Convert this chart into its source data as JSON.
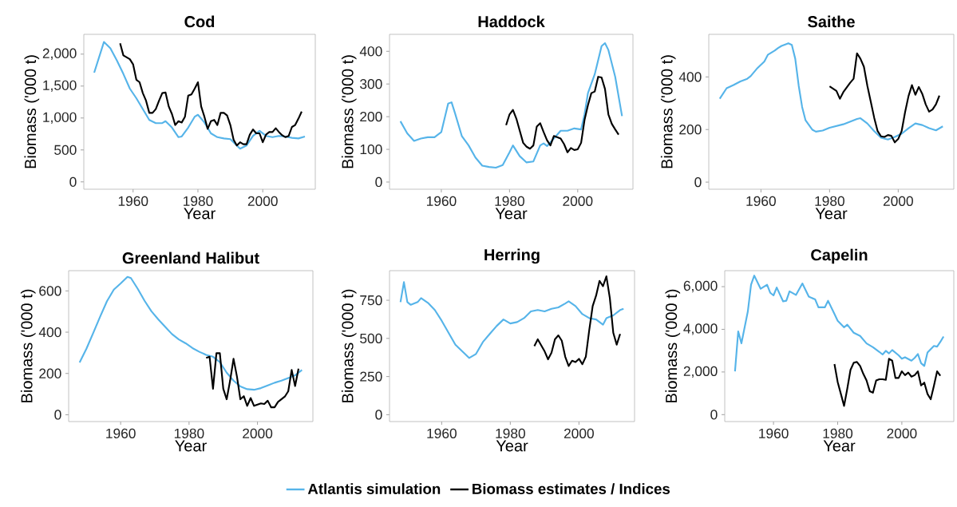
{
  "chart_data": [
    {
      "type": "line",
      "title": "Cod",
      "xlabel": "Year",
      "ylabel": "Biomass ('000 t)",
      "xlim": [
        1944.8,
        2016.2
      ],
      "ylim": [
        -115,
        2310
      ],
      "xticks": [
        1960,
        1980,
        2000
      ],
      "yticks": [
        0,
        500,
        {
          "value": 1000,
          "label": "1,000"
        },
        {
          "value": 1500,
          "label": "1,500"
        },
        {
          "value": 2000,
          "label": "2,000"
        }
      ],
      "legend": "bottom",
      "series": [
        {
          "name": "Atlantis simulation",
          "color": "#56b4e9",
          "x": [
            1948,
            1951,
            1953,
            1955,
            1957,
            1959,
            1961,
            1963,
            1965,
            1967,
            1969,
            1970,
            1972,
            1974,
            1975,
            1977,
            1979,
            1980,
            1982,
            1984,
            1986,
            1988,
            1990,
            1992,
            1993,
            1995,
            1997,
            1999,
            2001,
            2003,
            2005,
            2007,
            2009,
            2011,
            2013
          ],
          "values": [
            1710,
            2190,
            2090,
            1900,
            1690,
            1460,
            1310,
            1140,
            970,
            920,
            920,
            950,
            850,
            700,
            710,
            850,
            1020,
            1050,
            930,
            760,
            700,
            680,
            670,
            570,
            520,
            570,
            720,
            800,
            720,
            700,
            720,
            710,
            690,
            680,
            710
          ]
        },
        {
          "name": "Biomass estimates / Indices",
          "color": "#000000",
          "x": [
            1956,
            1957,
            1959,
            1960,
            1961,
            1962,
            1963,
            1964,
            1965,
            1966,
            1967,
            1968,
            1969,
            1970,
            1971,
            1972,
            1973,
            1974,
            1975,
            1976,
            1977,
            1978,
            1979,
            1980,
            1981,
            1982,
            1983,
            1984,
            1985,
            1986,
            1987,
            1988,
            1989,
            1990,
            1991,
            1992,
            1993,
            1994,
            1995,
            1996,
            1997,
            1998,
            1999,
            2000,
            2001,
            2002,
            2003,
            2004,
            2005,
            2006,
            2007,
            2008,
            2009,
            2010,
            2011,
            2012
          ],
          "values": [
            2170,
            1980,
            1920,
            1840,
            1600,
            1560,
            1390,
            1270,
            1080,
            1080,
            1140,
            1270,
            1390,
            1400,
            1180,
            1060,
            890,
            950,
            930,
            1020,
            1350,
            1370,
            1460,
            1560,
            1180,
            1020,
            830,
            950,
            970,
            890,
            1080,
            1080,
            1040,
            890,
            660,
            570,
            620,
            590,
            590,
            740,
            820,
            760,
            760,
            620,
            740,
            780,
            780,
            840,
            780,
            730,
            700,
            720,
            860,
            890,
            990,
            1100
          ]
        }
      ]
    },
    {
      "type": "line",
      "title": "Haddock",
      "xlabel": "Year",
      "ylabel": "Biomass ('000 t)",
      "xlim": [
        1944.8,
        2016.2
      ],
      "ylim": [
        -22,
        452
      ],
      "xticks": [
        1960,
        1980,
        2000
      ],
      "yticks": [
        0,
        100,
        200,
        300,
        400
      ],
      "series": [
        {
          "color": "#56b4e9",
          "x": [
            1948,
            1950,
            1952,
            1954,
            1956,
            1958,
            1960,
            1962,
            1963,
            1964,
            1966,
            1968,
            1970,
            1972,
            1974,
            1976,
            1978,
            1980,
            1981,
            1983,
            1985,
            1987,
            1989,
            1990,
            1991,
            1993,
            1995,
            1997,
            1999,
            2001,
            2002,
            2003,
            2005,
            2007,
            2008,
            2009,
            2011,
            2013
          ],
          "values": [
            186,
            149,
            126,
            133,
            137,
            137,
            153,
            240,
            244,
            211,
            141,
            112,
            75,
            50,
            46,
            44,
            52,
            91,
            112,
            79,
            60,
            63,
            112,
            118,
            110,
            133,
            157,
            157,
            164,
            161,
            207,
            272,
            330,
            416,
            425,
            404,
            322,
            202
          ]
        },
        {
          "color": "#000000",
          "x": [
            1979,
            1980,
            1981,
            1982,
            1983,
            1984,
            1985,
            1986,
            1987,
            1988,
            1989,
            1990,
            1991,
            1992,
            1993,
            1994,
            1995,
            1996,
            1997,
            1998,
            1999,
            2000,
            2001,
            2002,
            2003,
            2004,
            2005,
            2006,
            2007,
            2008,
            2009,
            2010,
            2011,
            2012
          ],
          "values": [
            174,
            207,
            221,
            194,
            157,
            120,
            108,
            102,
            112,
            170,
            180,
            153,
            128,
            112,
            141,
            137,
            133,
            116,
            91,
            104,
            98,
            100,
            120,
            190,
            235,
            272,
            277,
            322,
            320,
            285,
            207,
            178,
            161,
            145
          ]
        }
      ]
    },
    {
      "type": "line",
      "title": "Saithe",
      "xlabel": "Year",
      "ylabel": "Biomass ('000 t)",
      "xlim": [
        1944.8,
        2016.2
      ],
      "ylim": [
        -27,
        562
      ],
      "xticks": [
        1960,
        1980,
        2000
      ],
      "yticks": [
        0,
        200,
        400
      ],
      "series": [
        {
          "color": "#56b4e9",
          "x": [
            1948,
            1950,
            1952,
            1954,
            1956,
            1957,
            1959,
            1961,
            1962,
            1964,
            1965,
            1966,
            1968,
            1969,
            1970,
            1971,
            1972,
            1973,
            1975,
            1976,
            1978,
            1980,
            1984,
            1988,
            1989,
            1991,
            1993,
            1995,
            1997,
            1999,
            2001,
            2003,
            2005,
            2007,
            2009,
            2011,
            2013
          ],
          "values": [
            317,
            357,
            369,
            383,
            393,
            403,
            434,
            459,
            484,
            500,
            510,
            518,
            528,
            522,
            469,
            367,
            286,
            235,
            199,
            192,
            196,
            207,
            220,
            240,
            243,
            223,
            194,
            169,
            162,
            172,
            184,
            205,
            223,
            217,
            205,
            197,
            212
          ]
        },
        {
          "color": "#000000",
          "x": [
            1980,
            1982,
            1983,
            1984,
            1986,
            1987,
            1988,
            1989,
            1990,
            1991,
            1992,
            1993,
            1994,
            1995,
            1996,
            1997,
            1998,
            1999,
            2000,
            2001,
            2002,
            2003,
            2004,
            2005,
            2006,
            2007,
            2008,
            2009,
            2010,
            2011,
            2012
          ],
          "values": [
            364,
            347,
            317,
            342,
            378,
            393,
            490,
            469,
            439,
            367,
            306,
            245,
            194,
            174,
            172,
            179,
            176,
            151,
            164,
            194,
            266,
            327,
            369,
            332,
            362,
            336,
            296,
            268,
            276,
            296,
            329
          ]
        }
      ]
    },
    {
      "type": "line",
      "title": "Greenland Halibut",
      "xlabel": "Year",
      "ylabel": "Biomass ('000 t)",
      "xlim": [
        1944.8,
        2016.2
      ],
      "ylim": [
        -33,
        698
      ],
      "xticks": [
        1960,
        1980,
        2000
      ],
      "yticks": [
        0,
        200,
        400,
        600
      ],
      "series": [
        {
          "color": "#56b4e9",
          "x": [
            1948,
            1950,
            1952,
            1954,
            1956,
            1958,
            1960,
            1962,
            1963,
            1965,
            1967,
            1969,
            1971,
            1973,
            1975,
            1977,
            1979,
            1981,
            1983,
            1985,
            1987,
            1989,
            1991,
            1993,
            1995,
            1997,
            1999,
            2001,
            2003,
            2005,
            2007,
            2009,
            2011,
            2013
          ],
          "values": [
            253,
            320,
            397,
            475,
            550,
            606,
            636,
            668,
            662,
            610,
            552,
            501,
            462,
            426,
            391,
            365,
            346,
            323,
            305,
            290,
            281,
            255,
            204,
            165,
            137,
            124,
            121,
            129,
            142,
            155,
            165,
            178,
            191,
            217
          ]
        },
        {
          "color": "#000000",
          "x": [
            1985,
            1986,
            1987,
            1988,
            1989,
            1990,
            1991,
            1992,
            1993,
            1994,
            1995,
            1996,
            1997,
            1998,
            1999,
            2000,
            2001,
            2002,
            2003,
            2004,
            2005,
            2006,
            2007,
            2008,
            2009,
            2010,
            2011,
            2012
          ],
          "values": [
            275,
            281,
            126,
            298,
            298,
            126,
            75,
            165,
            271,
            185,
            75,
            90,
            43,
            81,
            43,
            49,
            55,
            52,
            68,
            36,
            36,
            62,
            75,
            88,
            114,
            217,
            139,
            223
          ]
        }
      ]
    },
    {
      "type": "line",
      "title": "Herring",
      "xlabel": "Year",
      "ylabel": "Biomass ('000 t)",
      "xlim": [
        1944.8,
        2016.2
      ],
      "ylim": [
        -45,
        944
      ],
      "xticks": [
        1960,
        1980,
        2000
      ],
      "yticks": [
        0,
        250,
        500,
        750
      ],
      "series": [
        {
          "color": "#56b4e9",
          "x": [
            1948,
            1949,
            1950,
            1951,
            1953,
            1954,
            1956,
            1958,
            1960,
            1962,
            1964,
            1966,
            1968,
            1970,
            1972,
            1974,
            1976,
            1978,
            1980,
            1982,
            1984,
            1986,
            1988,
            1990,
            1992,
            1994,
            1996,
            1997,
            1999,
            2001,
            2003,
            2005,
            2007,
            2008,
            2010,
            2012,
            2013
          ],
          "values": [
            738,
            869,
            738,
            720,
            738,
            764,
            733,
            686,
            616,
            537,
            459,
            415,
            372,
            398,
            476,
            529,
            581,
            624,
            598,
            607,
            633,
            677,
            686,
            677,
            694,
            703,
            729,
            743,
            712,
            659,
            633,
            624,
            590,
            633,
            651,
            686,
            694
          ]
        },
        {
          "color": "#000000",
          "x": [
            1987,
            1988,
            1990,
            1991,
            1992,
            1993,
            1994,
            1995,
            1996,
            1997,
            1998,
            1999,
            2000,
            2001,
            2002,
            2003,
            2004,
            2005,
            2006,
            2007,
            2008,
            2009,
            2010,
            2011,
            2012
          ],
          "values": [
            450,
            494,
            415,
            363,
            406,
            494,
            520,
            485,
            380,
            319,
            354,
            345,
            366,
            331,
            380,
            555,
            712,
            781,
            877,
            842,
            907,
            764,
            537,
            459,
            529
          ]
        }
      ]
    },
    {
      "type": "line",
      "title": "Capelin",
      "xlabel": "Year",
      "ylabel": "Biomass ('000 t)",
      "xlim": [
        1944.8,
        2016.2
      ],
      "ylim": [
        -325,
        6750
      ],
      "xticks": [
        1960,
        1980,
        2000
      ],
      "yticks": [
        0,
        {
          "value": 2000,
          "label": "2,000"
        },
        {
          "value": 4000,
          "label": "4,000"
        },
        {
          "value": 6000,
          "label": "6,000"
        }
      ],
      "series": [
        {
          "color": "#56b4e9",
          "x": [
            1948,
            1949,
            1950,
            1951,
            1952,
            1953,
            1954,
            1955,
            1956,
            1958,
            1959,
            1960,
            1961,
            1963,
            1964,
            1965,
            1967,
            1969,
            1971,
            1973,
            1974,
            1976,
            1977,
            1979,
            1980,
            1982,
            1983,
            1985,
            1987,
            1989,
            1991,
            1993,
            1994,
            1995,
            1996,
            1997,
            1999,
            2000,
            2001,
            2003,
            2004,
            2005,
            2006,
            2007,
            2008,
            2010,
            2011,
            2012,
            2013
          ],
          "values": [
            2030,
            3900,
            3340,
            4090,
            4840,
            6090,
            6520,
            6210,
            5900,
            6090,
            5710,
            5590,
            5960,
            5310,
            5340,
            5780,
            5610,
            6150,
            5530,
            5400,
            5030,
            5030,
            5340,
            4720,
            4400,
            4090,
            4220,
            3840,
            3690,
            3340,
            3160,
            2940,
            2820,
            2990,
            2870,
            3030,
            2780,
            2620,
            2690,
            2530,
            2660,
            2840,
            2410,
            2280,
            2910,
            3220,
            3190,
            3410,
            3660
          ]
        },
        {
          "color": "#000000",
          "x": [
            1979,
            1980,
            1981,
            1982,
            1983,
            1984,
            1985,
            1986,
            1987,
            1988,
            1989,
            1990,
            1991,
            1992,
            1993,
            1994,
            1995,
            1996,
            1997,
            1998,
            1999,
            2000,
            2001,
            2002,
            2003,
            2004,
            2005,
            2006,
            2007,
            2008,
            2009,
            2010,
            2011,
            2012
          ],
          "values": [
            2370,
            1530,
            970,
            410,
            1220,
            2100,
            2430,
            2470,
            2280,
            1910,
            1600,
            1100,
            1030,
            1600,
            1660,
            1660,
            1630,
            2620,
            2530,
            1720,
            1720,
            2030,
            1850,
            1970,
            1780,
            1850,
            2030,
            1370,
            1500,
            970,
            720,
            1350,
            2030,
            1820
          ]
        }
      ]
    }
  ]
}
